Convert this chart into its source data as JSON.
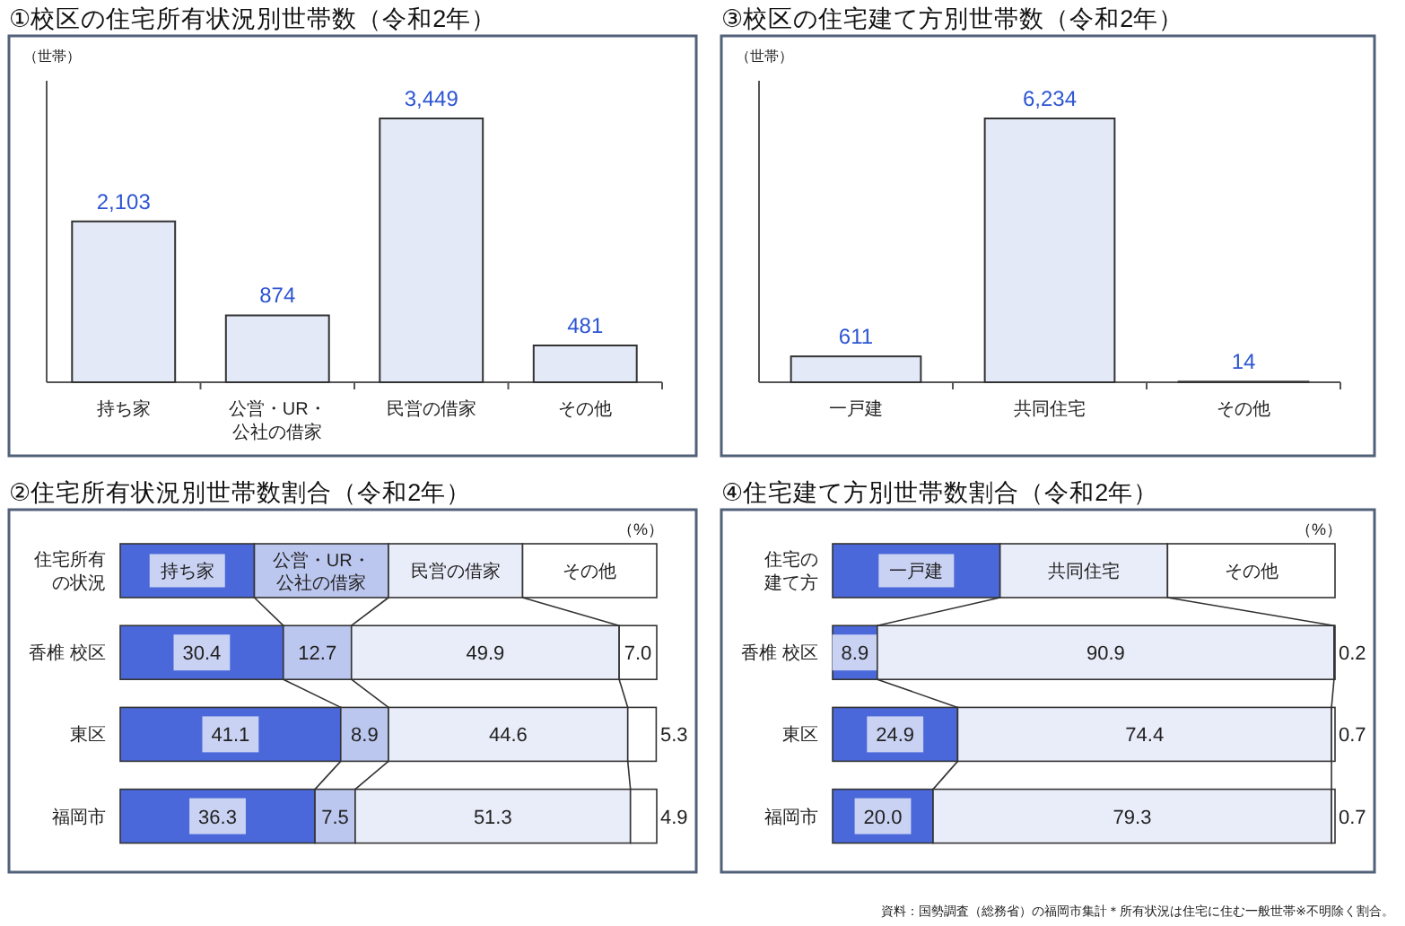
{
  "chart_data": [
    {
      "type": "bar",
      "title": "①校区の住宅所有状況別世帯数（令和2年）",
      "ylabel": "（世帯）",
      "categories": [
        "持ち家",
        "公営・UR・公社の借家",
        "民営の借家",
        "その他"
      ],
      "values": [
        2103,
        874,
        3449,
        481
      ],
      "value_labels": [
        "2,103",
        "874",
        "3,449",
        "481"
      ],
      "color": "#e4e9f8",
      "tick_labels": "x"
    },
    {
      "type": "bar",
      "title": "③校区の住宅建て方別世帯数（令和2年）",
      "ylabel": "（世帯）",
      "categories": [
        "一戸建",
        "共同住宅",
        "その他"
      ],
      "values": [
        611,
        6234,
        14
      ],
      "value_labels": [
        "611",
        "6,234",
        "14"
      ],
      "color": "#e4e9f8",
      "tick_labels": "x"
    },
    {
      "type": "bar",
      "orientation": "horizontal",
      "stacked": true,
      "title": "②住宅所有状況別世帯数割合（令和2年）",
      "xlabel": "（%）",
      "legend_title": "住宅所有の状況",
      "legend": "top",
      "tick_labels": "y",
      "categories": [
        "香椎 校区",
        "東区",
        "福岡市"
      ],
      "series": [
        {
          "name": "持ち家",
          "color": "#4a68d9",
          "values": [
            30.4,
            41.1,
            36.3
          ],
          "value_labels": [
            "30.4",
            "41.1",
            "36.3"
          ]
        },
        {
          "name": "公営・UR・公社の借家",
          "color": "#bcc7ef",
          "values": [
            12.7,
            8.9,
            7.5
          ],
          "value_labels": [
            "12.7",
            "8.9",
            "7.5"
          ]
        },
        {
          "name": "民営の借家",
          "color": "#e9edf9",
          "values": [
            49.9,
            44.6,
            51.3
          ],
          "value_labels": [
            "49.9",
            "44.6",
            "51.3"
          ]
        },
        {
          "name": "その他",
          "color": "#ffffff",
          "values": [
            7.0,
            5.3,
            4.9
          ],
          "value_labels": [
            "7.0",
            "5.3",
            "4.9"
          ]
        }
      ]
    },
    {
      "type": "bar",
      "orientation": "horizontal",
      "stacked": true,
      "title": "④住宅建て方別世帯数割合（令和2年）",
      "xlabel": "（%）",
      "legend_title": "住宅の建て方",
      "legend": "top",
      "tick_labels": "y",
      "categories": [
        "香椎 校区",
        "東区",
        "福岡市"
      ],
      "series": [
        {
          "name": "一戸建",
          "color": "#4a68d9",
          "values": [
            8.9,
            24.9,
            20.0
          ],
          "value_labels": [
            "8.9",
            "24.9",
            "20.0"
          ]
        },
        {
          "name": "共同住宅",
          "color": "#e9edf9",
          "values": [
            90.9,
            74.4,
            79.3
          ],
          "value_labels": [
            "90.9",
            "74.4",
            "79.3"
          ]
        },
        {
          "name": "その他",
          "color": "#ffffff",
          "values": [
            0.2,
            0.7,
            0.7
          ],
          "value_labels": [
            "0.2",
            "0.7",
            "0.7"
          ]
        }
      ],
      "annotations": [
        "資料：国勢調査（総務省）の福岡市集計＊所有状況は住宅に住む一般世帯※不明除く割合。"
      ]
    }
  ]
}
